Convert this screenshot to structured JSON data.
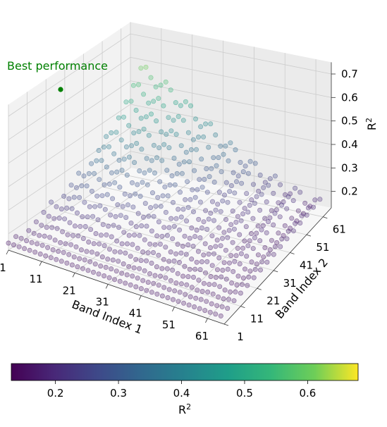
{
  "chart_data": {
    "type": "scatter",
    "subtype": "3d-scatter",
    "title": "",
    "xlabel": "Band Index 1",
    "ylabel": "Band Index 2",
    "zlabel": "R",
    "zlabel_sup": "2",
    "x_ticks": [
      "1",
      "11",
      "21",
      "31",
      "41",
      "51",
      "61"
    ],
    "y_ticks": [
      "1",
      "11",
      "21",
      "31",
      "41",
      "51",
      "61"
    ],
    "z_ticks": [
      "0.2",
      "0.3",
      "0.4",
      "0.5",
      "0.6",
      "0.7"
    ],
    "xlim": [
      1,
      66
    ],
    "ylim": [
      1,
      66
    ],
    "zlim": [
      0.13,
      0.75
    ],
    "grid": true,
    "colormap": "viridis",
    "colorbar": {
      "label": "R",
      "label_sup": "2",
      "range": [
        0.13,
        0.68
      ],
      "ticks": [
        "0.2",
        "0.3",
        "0.4",
        "0.5",
        "0.6"
      ]
    },
    "annotation": {
      "text": "Best performance",
      "color": "#008000",
      "point": {
        "x": 2,
        "y": 58,
        "z": 0.67
      }
    },
    "surface_model": {
      "description_values": "R² over (band1, band2) pairs, peak near low band1 / high band2",
      "min": 0.14,
      "max": 0.68
    }
  }
}
